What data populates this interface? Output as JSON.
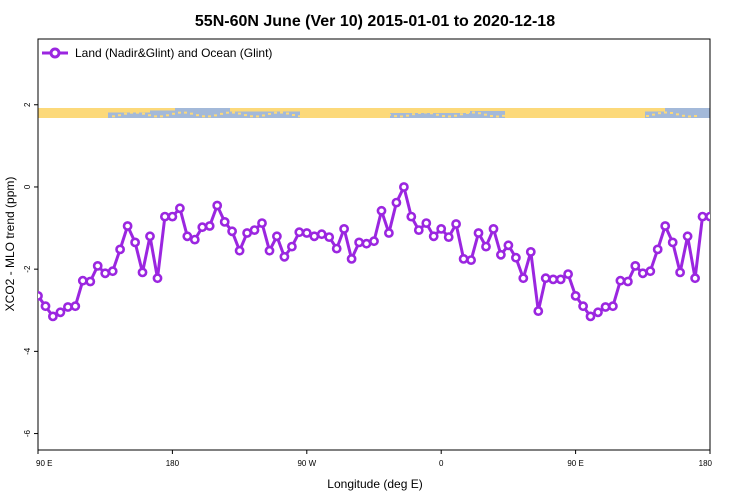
{
  "chart_data": {
    "type": "line",
    "title": "55N-60N June (Ver 10)   2015-01-01 to 2020-12-18",
    "xlabel": "Longitude (deg E)",
    "ylabel": "XCO2 - MLO trend (ppm)",
    "xlim": [
      90,
      540
    ],
    "ylim": [
      -6.4,
      3.6
    ],
    "x_ticks": [
      {
        "value": 90,
        "label": "90 E"
      },
      {
        "value": 180,
        "label": "180"
      },
      {
        "value": 270,
        "label": "90 W"
      },
      {
        "value": 360,
        "label": "0"
      },
      {
        "value": 450,
        "label": "90 E"
      },
      {
        "value": 540,
        "label": "180"
      }
    ],
    "y_ticks": [
      {
        "value": 2,
        "label": "2"
      },
      {
        "value": 0,
        "label": "0"
      },
      {
        "value": -2,
        "label": "-2"
      },
      {
        "value": -4,
        "label": "-4"
      },
      {
        "value": -6,
        "label": "-6"
      }
    ],
    "legend_position": "top-left",
    "grid": false,
    "series_color": "#9b26e0",
    "map_strip_colors": {
      "ocean": "#a3b9d9",
      "land": "#fcd97a"
    },
    "series": [
      {
        "name": "Land (Nadir&Glint) and Ocean (Glint)",
        "x": [
          90,
          95,
          100,
          105,
          110,
          115,
          120,
          125,
          130,
          135,
          140,
          145,
          150,
          155,
          160,
          165,
          170,
          175,
          180,
          185,
          190,
          195,
          200,
          205,
          210,
          215,
          220,
          225,
          230,
          235,
          240,
          245,
          250,
          255,
          260,
          265,
          270,
          275,
          280,
          285,
          290,
          295,
          300,
          305,
          310,
          315,
          320,
          325,
          330,
          335,
          340,
          345,
          350,
          355,
          360,
          365,
          370,
          375,
          380,
          385,
          390,
          395,
          400,
          405,
          410,
          415,
          420,
          425,
          430,
          435,
          440,
          445,
          450,
          455,
          460,
          465,
          470,
          475,
          480,
          485,
          490,
          495,
          500,
          505,
          510,
          515,
          520,
          525,
          530,
          535,
          540
        ],
        "values": [
          -2.65,
          -2.9,
          -3.15,
          -3.05,
          -2.92,
          -2.9,
          -2.28,
          -2.3,
          -1.92,
          -2.1,
          -2.05,
          -1.52,
          -0.95,
          -1.35,
          -2.08,
          -1.2,
          -2.22,
          -0.72,
          -0.72,
          -0.52,
          -1.2,
          -1.28,
          -0.98,
          -0.95,
          -0.45,
          -0.85,
          -1.08,
          -1.55,
          -1.12,
          -1.05,
          -0.88,
          -1.55,
          -1.2,
          -1.7,
          -1.45,
          -1.1,
          -1.12,
          -1.2,
          -1.15,
          -1.22,
          -1.5,
          -1.02,
          -1.75,
          -1.35,
          -1.38,
          -1.32,
          -0.58,
          -1.12,
          -0.38,
          0.0,
          -0.72,
          -1.05,
          -0.88,
          -1.2,
          -1.02,
          -1.22,
          -0.9,
          -1.75,
          -1.78,
          -1.12,
          -1.45,
          -1.02,
          -1.65,
          -1.42,
          -1.72,
          -2.22,
          -1.58,
          -3.02,
          -2.22,
          -2.25,
          -2.25,
          -2.12,
          -2.65,
          -2.9,
          -3.15,
          -3.05,
          -2.92,
          -2.9,
          -2.28,
          -2.3,
          -1.92,
          -2.1,
          -2.05,
          -1.52,
          -0.95,
          -1.35,
          -2.08,
          -1.2,
          -2.22,
          -0.72,
          -0.72
        ]
      }
    ]
  }
}
